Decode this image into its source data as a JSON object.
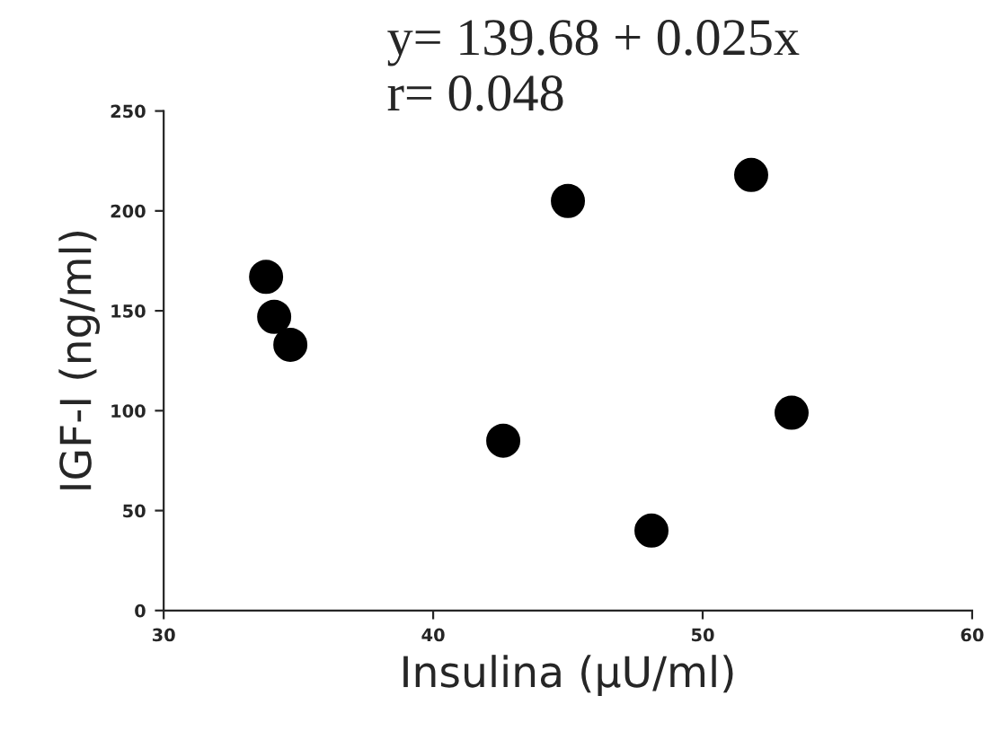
{
  "chart_data": {
    "type": "scatter",
    "xlabel": "Insulina (μU/ml)",
    "ylabel": "IGF-I (ng/ml)",
    "annotations": [
      "y= 139.68 + 0.025x",
      "r= 0.048"
    ],
    "x": [
      33.8,
      34.1,
      34.7,
      42.6,
      45.0,
      48.1,
      51.8,
      53.3
    ],
    "values": [
      167,
      147,
      133,
      85,
      205,
      40,
      218,
      99
    ],
    "color": "#000000",
    "marker": "circle",
    "xlim": [
      30,
      60
    ],
    "xticks": [
      30,
      40,
      50,
      60
    ],
    "ylim": [
      0,
      250
    ],
    "yticks": [
      0,
      50,
      100,
      150,
      200,
      250
    ],
    "grid": false,
    "legend": false
  }
}
